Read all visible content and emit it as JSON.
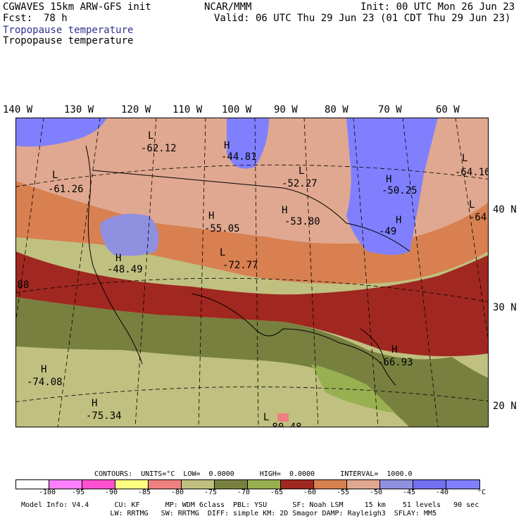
{
  "header": {
    "model": "CGWAVES 15km ARW-GFS init",
    "org": "NCAR/MMM",
    "init": "Init: 00 UTC Mon 26 Jun 23",
    "fcst_label": "Fcst:",
    "fcst_value": "78 h",
    "valid": "Valid: 06 UTC Thu 29 Jun 23 (01 CDT Thu 29 Jun 23)",
    "field1": "Tropopause temperature",
    "field2": "Tropopause temperature"
  },
  "lon_labels": [
    "140 W",
    "130 W",
    "120 W",
    "110 W",
    "100 W",
    "90 W",
    "80 W",
    "70 W",
    "60 W"
  ],
  "lat_labels": [
    "40 N",
    "30 N",
    "20 N"
  ],
  "map_labels": [
    {
      "kind": "L",
      "value": "-62.12"
    },
    {
      "kind": "H",
      "value": "-44.81"
    },
    {
      "kind": "L",
      "value": "-61.26"
    },
    {
      "kind": "L",
      "value": "-52.27"
    },
    {
      "kind": "H",
      "value": "-50.25"
    },
    {
      "kind": "L",
      "value": "-64.16"
    },
    {
      "kind": "L",
      "value": "-64"
    },
    {
      "kind": "H",
      "value": "-55.05"
    },
    {
      "kind": "H",
      "value": "-53.80"
    },
    {
      "kind": "H",
      "value": "-49"
    },
    {
      "kind": "H",
      "value": "-48.49"
    },
    {
      "kind": "L",
      "value": "-72.77"
    },
    {
      "kind": "",
      "value": ".88"
    },
    {
      "kind": "H",
      "value": "-66.93"
    },
    {
      "kind": "H",
      "value": "-74.08"
    },
    {
      "kind": "H",
      "value": "-75.34"
    },
    {
      "kind": "L",
      "value": "-80.48"
    }
  ],
  "legend": {
    "contours_line": "CONTOURS:  UNITS=°C  LOW=  0.0000      HIGH=  0.0000      INTERVAL=  1000.0",
    "colors": [
      "#ffffff",
      "#ff80ff",
      "#ff50d0",
      "#ffff80",
      "#f08080",
      "#c0c080",
      "#788040",
      "#98b050",
      "#a02820",
      "#d88050",
      "#e0a890",
      "#9090e0",
      "#7070f0",
      "#8080ff"
    ],
    "labels": [
      "-100",
      "-95",
      "-90",
      "-85",
      "-80",
      "-75",
      "-70",
      "-65",
      "-60",
      "-55",
      "-50",
      "-45",
      "-40",
      "°C"
    ]
  },
  "footer": {
    "line1": "Model Info: V4.4      CU: KF      MP: WDM 6class  PBL: YSU      SF: Noah LSM     15 km    51 levels   90 sec",
    "line2": "                     LW: RRTMG   SW: RRTMG  DIFF: simple KM: 2D Smagor DAMP: Rayleigh3  SFLAY: MM5"
  }
}
